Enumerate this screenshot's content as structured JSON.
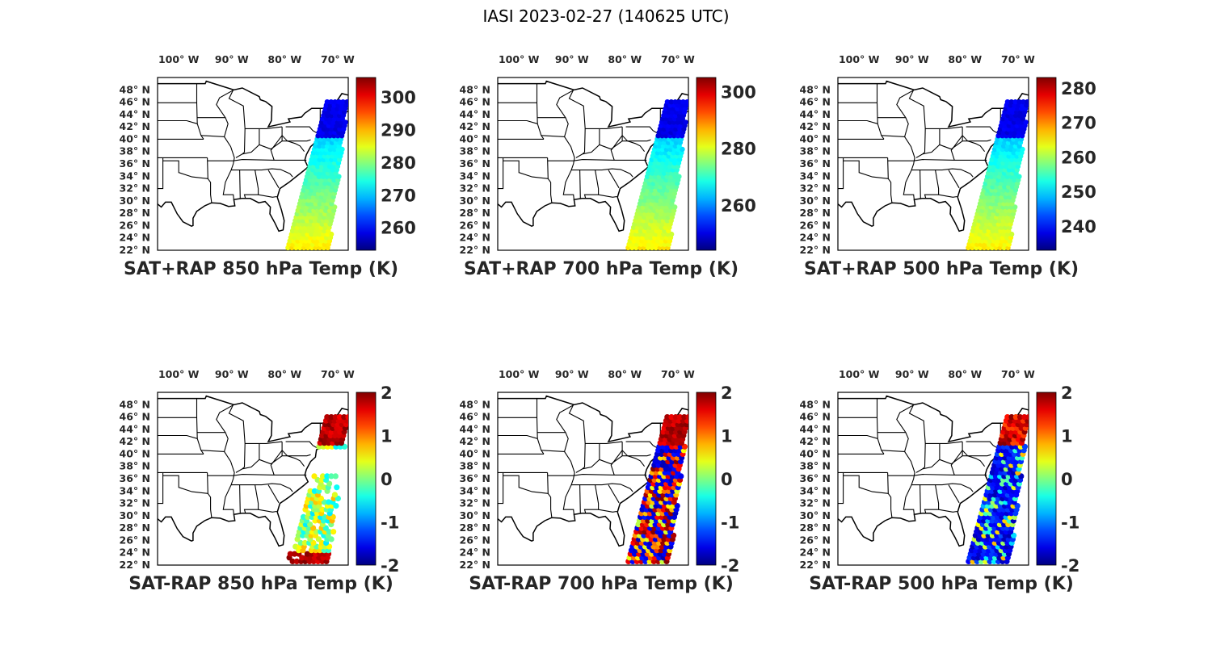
{
  "figure": {
    "title": "IASI 2023-02-27 (140625 UTC)"
  },
  "axes_common": {
    "lon_ticks": [
      "100° W",
      "90° W",
      "80° W",
      "70° W"
    ],
    "lat_ticks": [
      "48° N",
      "46° N",
      "44° N",
      "42° N",
      "40° N",
      "38° N",
      "36° N",
      "34° N",
      "32° N",
      "30° N",
      "28° N",
      "26° N",
      "24° N",
      "22° N"
    ],
    "lon_values": [
      -100,
      -90,
      -80,
      -70
    ],
    "lat_values": [
      48,
      46,
      44,
      42,
      40,
      38,
      36,
      34,
      32,
      30,
      28,
      26,
      24,
      22
    ],
    "lon_range": [
      -104,
      -68
    ],
    "lat_range": [
      22,
      50
    ],
    "colormap": "jet"
  },
  "panels": [
    {
      "id": "sat-rap-850",
      "label": "SAT+RAP 850 hPa Temp (K)",
      "kind": "sum",
      "colorbar_ticks": [
        "300",
        "290",
        "280",
        "270",
        "260"
      ],
      "colorbar_tick_values": [
        300,
        290,
        280,
        270,
        260
      ],
      "colorbar_range": [
        253,
        306
      ]
    },
    {
      "id": "sat-rap-700",
      "label": "SAT+RAP 700 hPa Temp (K)",
      "kind": "sum",
      "colorbar_ticks": [
        "300",
        "280",
        "260"
      ],
      "colorbar_tick_values": [
        300,
        280,
        260
      ],
      "colorbar_range": [
        244,
        305
      ]
    },
    {
      "id": "sat-rap-500",
      "label": "SAT+RAP 500 hPa Temp (K)",
      "kind": "sum",
      "colorbar_ticks": [
        "280",
        "270",
        "260",
        "250",
        "240"
      ],
      "colorbar_tick_values": [
        280,
        270,
        260,
        250,
        240
      ],
      "colorbar_range": [
        233,
        283
      ]
    },
    {
      "id": "sat-minus-rap-850",
      "label": "SAT-RAP 850 hPa Temp (K)",
      "kind": "diff",
      "colorbar_ticks": [
        "2",
        "1",
        "0",
        "-1",
        "-2"
      ],
      "colorbar_tick_values": [
        2,
        1,
        0,
        -1,
        -2
      ],
      "colorbar_range": [
        -2,
        2
      ]
    },
    {
      "id": "sat-minus-rap-700",
      "label": "SAT-RAP 700 hPa Temp (K)",
      "kind": "diff",
      "colorbar_ticks": [
        "2",
        "1",
        "0",
        "-1",
        "-2"
      ],
      "colorbar_tick_values": [
        2,
        1,
        0,
        -1,
        -2
      ],
      "colorbar_range": [
        -2,
        2
      ]
    },
    {
      "id": "sat-minus-rap-500",
      "label": "SAT-RAP 500 hPa Temp (K)",
      "kind": "diff",
      "colorbar_ticks": [
        "2",
        "1",
        "0",
        "-1",
        "-2"
      ],
      "colorbar_tick_values": [
        2,
        1,
        0,
        -1,
        -2
      ],
      "colorbar_range": [
        -2,
        2
      ]
    }
  ]
}
